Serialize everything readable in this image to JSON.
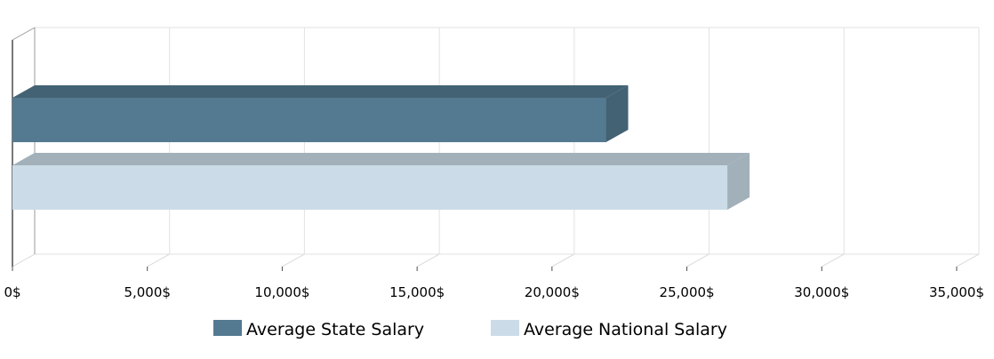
{
  "chart_data": {
    "type": "bar",
    "orientation": "horizontal",
    "three_d": true,
    "title": "",
    "xlabel": "",
    "ylabel": "",
    "xlim": [
      0,
      35000
    ],
    "grid": true,
    "tick_values": [
      0,
      5000,
      10000,
      15000,
      20000,
      25000,
      30000,
      35000
    ],
    "tick_labels": [
      "0$",
      "5,000$",
      "10,000$",
      "15,000$",
      "20,000$",
      "25,000$",
      "30,000$",
      "35,000$"
    ],
    "legend_position": "bottom",
    "series": [
      {
        "name": "Average State Salary",
        "value": 22000,
        "color": "#547a91",
        "top_color": "#436274",
        "side_color": "#436274"
      },
      {
        "name": "Average National Salary",
        "value": 26500,
        "color": "#cbdce8",
        "top_color": "#a2b0ba",
        "side_color": "#a2b0ba"
      }
    ]
  }
}
